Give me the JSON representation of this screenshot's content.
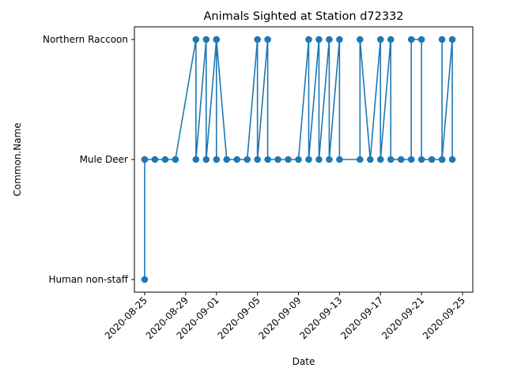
{
  "chart_data": {
    "type": "line",
    "title": "Animals Sighted at Station d72332",
    "xlabel": "Date",
    "ylabel": "Common.Name",
    "categories": [
      "Human non-staff",
      "Mule Deer",
      "Northern Raccoon"
    ],
    "x_ticks": [
      "2020-08-25",
      "2020-08-29",
      "2020-09-01",
      "2020-09-05",
      "2020-09-09",
      "2020-09-13",
      "2020-09-17",
      "2020-09-21",
      "2020-09-25"
    ],
    "xlim": [
      "2020-08-24",
      "2020-09-26"
    ],
    "grid": false,
    "legend": "none",
    "color": "#1f77b4",
    "series": [
      {
        "x": [
          "2020-08-25",
          "2020-08-25",
          "2020-08-25",
          "2020-08-26",
          "2020-08-27",
          "2020-08-28",
          "2020-08-30",
          "2020-08-30",
          "2020-08-31",
          "2020-08-31",
          "2020-09-01",
          "2020-09-01",
          "2020-09-01",
          "2020-09-02",
          "2020-09-03",
          "2020-09-04",
          "2020-09-05",
          "2020-09-05",
          "2020-09-06",
          "2020-09-06",
          "2020-09-07",
          "2020-09-08",
          "2020-09-09",
          "2020-09-10",
          "2020-09-10",
          "2020-09-11",
          "2020-09-11",
          "2020-09-12",
          "2020-09-12",
          "2020-09-13",
          "2020-09-13",
          "2020-09-15",
          "2020-09-15",
          "2020-09-16",
          "2020-09-17",
          "2020-09-17",
          "2020-09-18",
          "2020-09-18",
          "2020-09-19",
          "2020-09-20",
          "2020-09-20",
          "2020-09-21",
          "2020-09-21",
          "2020-09-22",
          "2020-09-23",
          "2020-09-23",
          "2020-09-23",
          "2020-09-24",
          "2020-09-24"
        ],
        "y": [
          "Mule Deer",
          "Human non-staff",
          "Mule Deer",
          "Mule Deer",
          "Mule Deer",
          "Mule Deer",
          "Northern Raccoon",
          "Mule Deer",
          "Northern Raccoon",
          "Mule Deer",
          "Northern Raccoon",
          "Mule Deer",
          "Northern Raccoon",
          "Mule Deer",
          "Mule Deer",
          "Mule Deer",
          "Northern Raccoon",
          "Mule Deer",
          "Northern Raccoon",
          "Mule Deer",
          "Mule Deer",
          "Mule Deer",
          "Mule Deer",
          "Northern Raccoon",
          "Mule Deer",
          "Northern Raccoon",
          "Mule Deer",
          "Northern Raccoon",
          "Mule Deer",
          "Northern Raccoon",
          "Mule Deer",
          "Mule Deer",
          "Northern Raccoon",
          "Mule Deer",
          "Northern Raccoon",
          "Mule Deer",
          "Northern Raccoon",
          "Mule Deer",
          "Mule Deer",
          "Mule Deer",
          "Northern Raccoon",
          "Northern Raccoon",
          "Mule Deer",
          "Mule Deer",
          "Mule Deer",
          "Northern Raccoon",
          "Mule Deer",
          "Northern Raccoon",
          "Mule Deer"
        ]
      }
    ]
  }
}
